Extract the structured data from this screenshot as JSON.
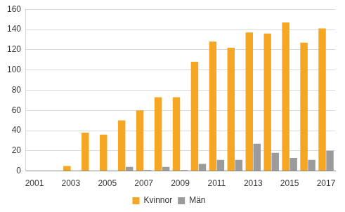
{
  "chart_data": {
    "type": "bar",
    "categories": [
      "2001",
      null,
      "2003",
      null,
      "2005",
      null,
      "2007",
      null,
      "2009",
      null,
      "2011",
      null,
      "2013",
      null,
      "2015",
      null,
      "2017"
    ],
    "series": [
      {
        "name": "Kvinnor",
        "color": "#f5a623",
        "values": [
          0,
          0,
          5,
          38,
          36,
          50,
          60,
          73,
          73,
          108,
          128,
          122,
          137,
          136,
          147,
          127,
          141
        ]
      },
      {
        "name": "Män",
        "color": "#9b9b9b",
        "values": [
          0,
          0,
          0,
          0,
          0,
          4,
          1,
          4,
          1,
          7,
          11,
          11,
          27,
          18,
          13,
          11,
          20
        ]
      }
    ],
    "ylim": [
      0,
      160
    ],
    "yticks": [
      0,
      20,
      40,
      60,
      80,
      100,
      120,
      140,
      160
    ],
    "grid": true,
    "legend": "bottom"
  }
}
